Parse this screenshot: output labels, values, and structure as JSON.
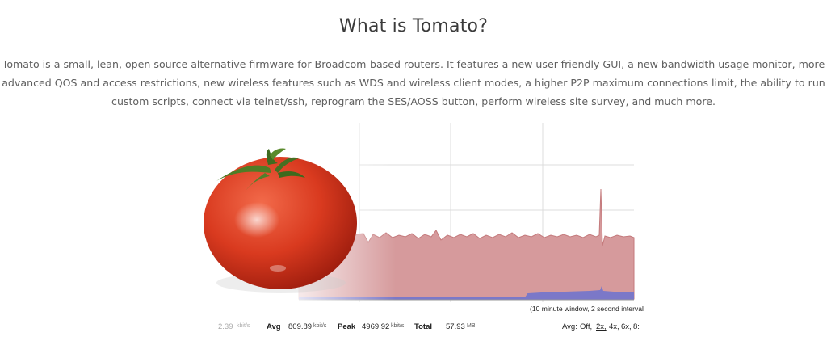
{
  "heading": "What is Tomato?",
  "description": "Tomato is a small, lean, open source alternative firmware for Broadcom-based routers. It features a new user-friendly GUI, a new bandwidth usage monitor, more advanced QOS and access restrictions, new wireless features such as WDS and wireless client modes, a higher P2P maximum connections limit, the ability to run custom scripts, connect via telnet/ssh, reprogram the SES/AOSS button, perform wireless site survey, and much more.",
  "hero_image": {
    "icon": "tomato-icon",
    "graph_note": "(10 minute window, 2 second interval",
    "stats": {
      "current_value": "2.39",
      "current_unit": "kbit/s",
      "avg_label": "Avg",
      "avg_value": "809.89",
      "avg_unit": "kbit/s",
      "peak_label": "Peak",
      "peak_value": "4969.92",
      "peak_unit": "kbit/s",
      "total_label": "Total",
      "total_value": "57.93",
      "total_unit": "MB"
    },
    "averaging": {
      "label": "Avg:",
      "off": "Off,",
      "x2": "2x,",
      "x4": "4x,",
      "x6": "6x,",
      "x8": "8:"
    },
    "colors": {
      "inbound_fill": "#d69a9c",
      "inbound_line": "#c47a7c",
      "outbound_fill": "#7b78c8",
      "tomato_red": "#d93a1f"
    }
  }
}
